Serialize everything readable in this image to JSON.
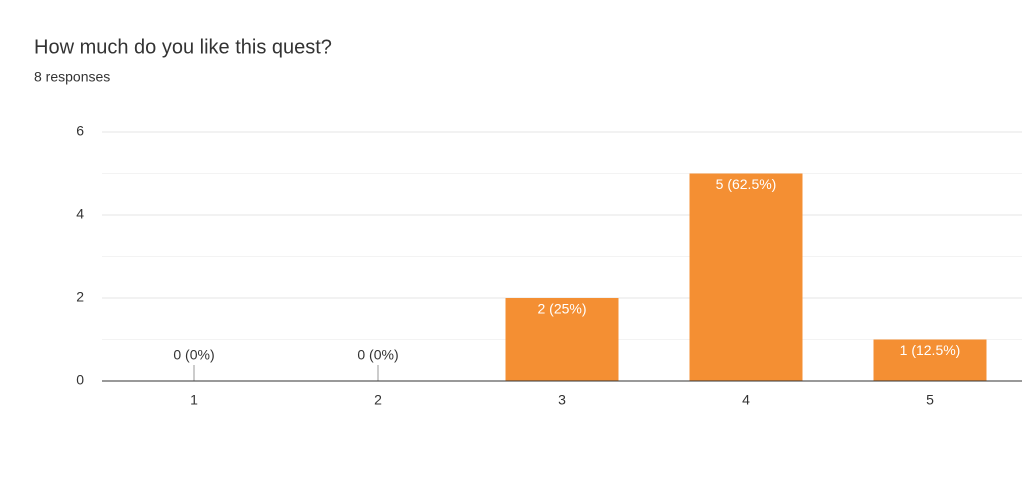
{
  "chart_data": {
    "type": "bar",
    "title": "How much do you like this quest?",
    "subtitle": "8 responses",
    "categories": [
      "1",
      "2",
      "3",
      "4",
      "5"
    ],
    "values": [
      0,
      0,
      2,
      5,
      1
    ],
    "value_labels": [
      "0 (0%)",
      "0 (0%)",
      "2 (25%)",
      "5 (62.5%)",
      "1 (12.5%)"
    ],
    "color": "#f48f33",
    "ylim": [
      0,
      6
    ],
    "yticks": [
      0,
      2,
      4,
      6
    ],
    "minor_yticks": [
      1,
      3,
      5
    ],
    "grid": true
  }
}
